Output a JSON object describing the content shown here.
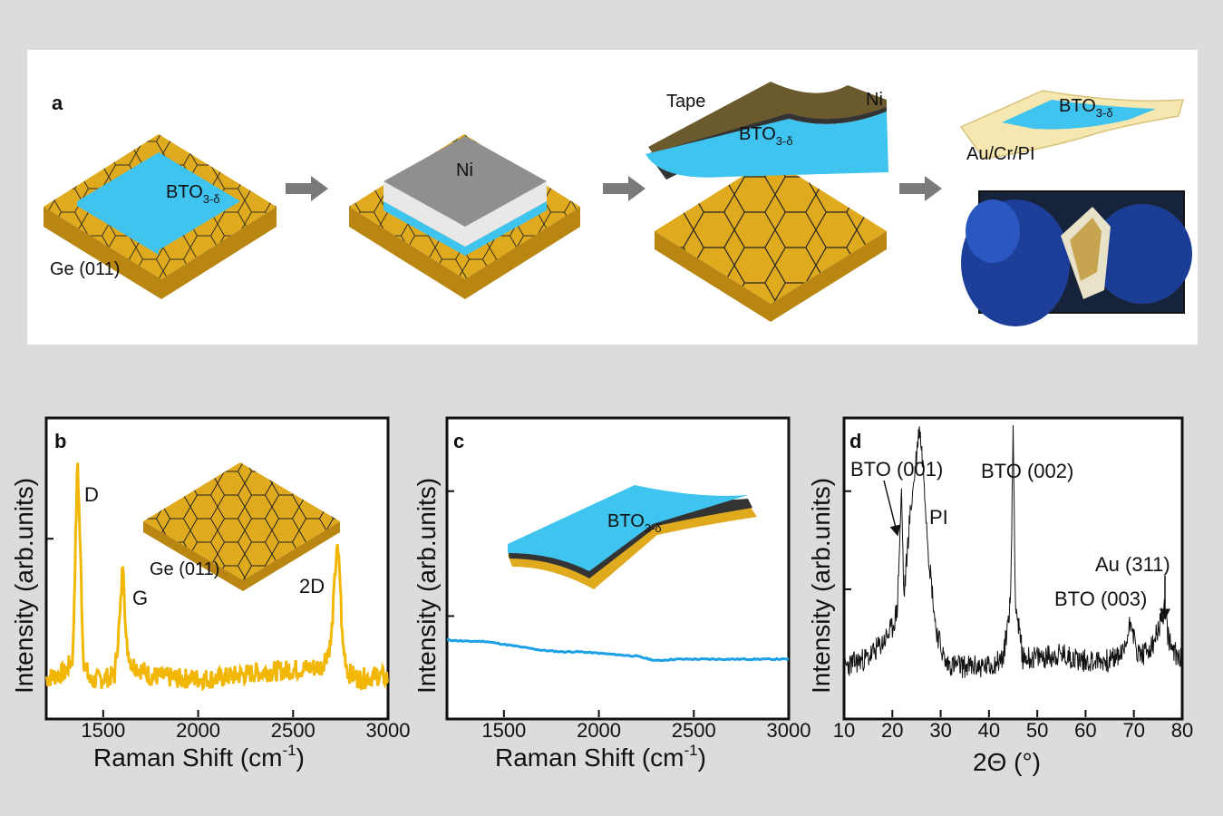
{
  "colors": {
    "page_bg": "#dcdcdc",
    "germanium": "#e0aa1e",
    "germanium_dark": "#b98612",
    "bto": "#3fc4f0",
    "nickel_top": "#8f8f8f",
    "nickel_side": "#e8e8e8",
    "raman_b": "#f2b705",
    "raman_c": "#1ca0e6",
    "xrd": "#111111",
    "arrow": "#7a7a7a"
  },
  "panel_a": {
    "label": "a",
    "step1": {
      "film": "BTO",
      "film_sub": "3-δ",
      "substrate": "Ge (011)"
    },
    "step2": {
      "layer": "Ni"
    },
    "step3": {
      "tape": "Tape",
      "layer": "Ni",
      "film": "BTO",
      "film_sub": "3-δ"
    },
    "step4": {
      "film": "BTO",
      "film_sub": "3-δ",
      "substrate": "Au/Cr/PI"
    }
  },
  "panel_b": {
    "label": "b",
    "inset_label": "Ge (011)",
    "peaks": [
      "D",
      "G",
      "2D"
    ],
    "xlabel": "Raman Shift (cm",
    "xlabel_sup": "-1",
    "xlabel_end": ")",
    "ylabel": "Intensity (arb.units)",
    "xticks": [
      "1500",
      "2000",
      "2500",
      "3000"
    ]
  },
  "panel_c": {
    "label": "c",
    "inset_film": "BTO",
    "inset_film_sub": "3-δ",
    "xlabel": "Raman Shift (cm",
    "xlabel_sup": "-1",
    "xlabel_end": ")",
    "ylabel": "Intensity (arb.units)",
    "xticks": [
      "1500",
      "2000",
      "2500",
      "3000"
    ]
  },
  "panel_d": {
    "label": "d",
    "xlabel": "2Θ (°)",
    "ylabel": "Intensity (arb.units)",
    "xticks": [
      "10",
      "20",
      "30",
      "40",
      "50",
      "60",
      "70",
      "80"
    ],
    "annotations": [
      "BTO (001)",
      "PI",
      "BTO (002)",
      "Au (311)",
      "BTO (003)"
    ]
  },
  "chart_data": [
    {
      "type": "line",
      "xlabel": "Raman Shift (cm-1)",
      "ylabel": "Intensity (arb.units)",
      "xlim": [
        1200,
        3000
      ],
      "ylim": [
        0,
        1
      ],
      "x": [
        1200,
        1300,
        1340,
        1365,
        1380,
        1395,
        1430,
        1500,
        1560,
        1590,
        1605,
        1620,
        1650,
        1750,
        1900,
        2100,
        2300,
        2500,
        2650,
        2700,
        2730,
        2745,
        2760,
        2790,
        2850,
        2950,
        3000
      ],
      "series": [
        {
          "values": [
            0.13,
            0.15,
            0.2,
            0.87,
            0.55,
            0.2,
            0.12,
            0.13,
            0.14,
            0.35,
            0.55,
            0.25,
            0.18,
            0.14,
            0.13,
            0.13,
            0.15,
            0.16,
            0.17,
            0.25,
            0.57,
            0.5,
            0.25,
            0.15,
            0.13,
            0.14,
            0.13
          ]
        }
      ],
      "annotations": [
        "D",
        "G",
        "2D"
      ]
    },
    {
      "type": "line",
      "xlabel": "Raman Shift (cm-1)",
      "ylabel": "Intensity (arb.units)",
      "xlim": [
        1200,
        3000
      ],
      "ylim": [
        0,
        1
      ],
      "x": [
        1200,
        1300,
        1400,
        1500,
        1600,
        1700,
        1800,
        1900,
        2000,
        2100,
        2200,
        2300,
        2400,
        2500,
        2600,
        2700,
        2800,
        2900,
        3000
      ],
      "series": [
        {
          "values": [
            0.26,
            0.255,
            0.255,
            0.245,
            0.235,
            0.225,
            0.22,
            0.22,
            0.215,
            0.21,
            0.205,
            0.19,
            0.195,
            0.195,
            0.195,
            0.195,
            0.195,
            0.195,
            0.195
          ]
        }
      ]
    },
    {
      "type": "line",
      "xlabel": "2Θ (°)",
      "ylabel": "Intensity (arb.units)",
      "xlim": [
        10,
        80
      ],
      "ylim": [
        0,
        1
      ],
      "x": [
        10,
        15,
        18,
        20,
        21,
        21.9,
        22.4,
        23.5,
        24.5,
        25.6,
        26.5,
        27.5,
        29,
        31,
        35,
        40,
        43,
        44.5,
        45,
        45.5,
        47,
        50,
        55,
        60,
        65,
        68,
        69.5,
        70,
        70.5,
        72,
        74,
        75.5,
        76.3,
        77,
        78,
        80
      ],
      "series": [
        {
          "values": [
            0.17,
            0.2,
            0.25,
            0.3,
            0.36,
            0.76,
            0.4,
            0.65,
            0.8,
            0.98,
            0.82,
            0.55,
            0.3,
            0.18,
            0.17,
            0.17,
            0.2,
            0.4,
            0.98,
            0.38,
            0.2,
            0.2,
            0.21,
            0.19,
            0.19,
            0.22,
            0.34,
            0.27,
            0.22,
            0.21,
            0.24,
            0.32,
            0.36,
            0.28,
            0.22,
            0.2
          ]
        }
      ],
      "annotations": [
        "BTO (001)",
        "PI",
        "BTO (002)",
        "Au (311)",
        "BTO (003)"
      ]
    }
  ]
}
